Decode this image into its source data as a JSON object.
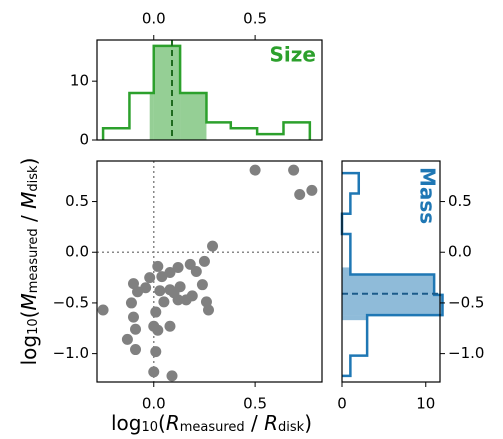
{
  "chart_data": [
    {
      "type": "scatter",
      "xlabel": [
        {
          "text": "log"
        },
        {
          "text": "10",
          "sub": true
        },
        {
          "text": "("
        },
        {
          "text": "R",
          "italic": true
        },
        {
          "text": "measured",
          "sub": true
        },
        {
          "text": " / "
        },
        {
          "text": "R",
          "italic": true
        },
        {
          "text": "disk",
          "sub": true
        },
        {
          "text": ")"
        }
      ],
      "ylabel": [
        {
          "text": "log"
        },
        {
          "text": "10",
          "sub": true
        },
        {
          "text": "("
        },
        {
          "text": "M",
          "italic": true
        },
        {
          "text": "measured",
          "sub": true
        },
        {
          "text": " / "
        },
        {
          "text": "M",
          "italic": true
        },
        {
          "text": "disk",
          "sub": true
        },
        {
          "text": ")"
        }
      ],
      "color": "#808080",
      "x": [
        0.5,
        0.69,
        0.72,
        0.78,
        0.29,
        0.25,
        0.21,
        0.12,
        0.18,
        0.08,
        0.04,
        -0.02,
        -0.1,
        -0.08,
        0.03,
        0.08,
        0.13,
        0.24,
        0.19,
        0.26,
        0.27,
        0.12,
        0.16,
        0.05,
        0.01,
        -0.11,
        -0.25,
        -0.1,
        0.0,
        0.02,
        -0.09,
        -0.13,
        -0.09,
        0.01,
        0.0,
        0.09,
        0.08,
        -0.04,
        0.02,
        0.1
      ],
      "y": [
        0.81,
        0.81,
        0.57,
        0.61,
        0.06,
        -0.09,
        -0.19,
        -0.15,
        -0.12,
        -0.2,
        -0.24,
        -0.25,
        -0.31,
        -0.39,
        -0.38,
        -0.37,
        -0.34,
        -0.32,
        -0.43,
        -0.49,
        -0.57,
        -0.47,
        -0.47,
        -0.49,
        -0.59,
        -0.5,
        -0.57,
        -0.64,
        -0.73,
        -0.77,
        -0.76,
        -0.86,
        -0.96,
        -0.98,
        -1.18,
        -1.22,
        -0.73,
        -0.35,
        -0.14,
        -0.4
      ],
      "xlim": [
        -0.28,
        0.83
      ],
      "ylim": [
        -1.28,
        0.9
      ],
      "xticks": [
        {
          "value": 0,
          "label": "0.0"
        },
        {
          "value": 0.5,
          "label": "0.5"
        }
      ],
      "yticks": [
        {
          "value": 0.5,
          "label": "0.5"
        },
        {
          "value": 0,
          "label": "0.0"
        },
        {
          "value": -0.5,
          "label": "−0.5"
        },
        {
          "value": -1.0,
          "label": "−1.0"
        }
      ],
      "reference_lines": [
        0,
        0
      ]
    },
    {
      "type": "histogram",
      "title": "Size",
      "color": "#2ca02c",
      "bins": [
        -0.25,
        -0.12,
        0.0,
        0.13,
        0.26,
        0.38,
        0.51,
        0.64,
        0.77
      ],
      "counts": [
        2,
        8,
        16,
        8,
        3,
        2,
        1,
        3
      ],
      "shade_range": [
        -0.02,
        0.26
      ],
      "median": 0.09,
      "xlim": [
        -0.28,
        0.83
      ],
      "ylim": [
        0,
        17
      ],
      "xticks": [
        {
          "value": 0,
          "label": "0.0"
        },
        {
          "value": 0.5,
          "label": "0.5"
        }
      ],
      "yticks": [
        0,
        10
      ]
    },
    {
      "type": "histogram",
      "orientation": "horizontal",
      "title": "Mass",
      "color": "#1f77b4",
      "bins": [
        -1.22,
        -1.02,
        -0.82,
        -0.62,
        -0.42,
        -0.22,
        -0.02,
        0.18,
        0.38,
        0.58,
        0.78
      ],
      "counts": [
        1,
        3,
        3,
        12,
        11,
        1,
        1,
        0,
        1,
        2
      ],
      "shade_range": [
        -0.67,
        -0.15
      ],
      "median": -0.41,
      "xlim": [
        0,
        11.7
      ],
      "ylim": [
        -1.28,
        0.9
      ],
      "xticks": [
        0,
        10
      ],
      "yticks": [
        {
          "value": 0.5,
          "label": "0.5"
        },
        {
          "value": 0,
          "label": "0.0"
        },
        {
          "value": -0.5,
          "label": "−0.5"
        },
        {
          "value": -1.0,
          "label": "−1.0"
        }
      ]
    }
  ]
}
